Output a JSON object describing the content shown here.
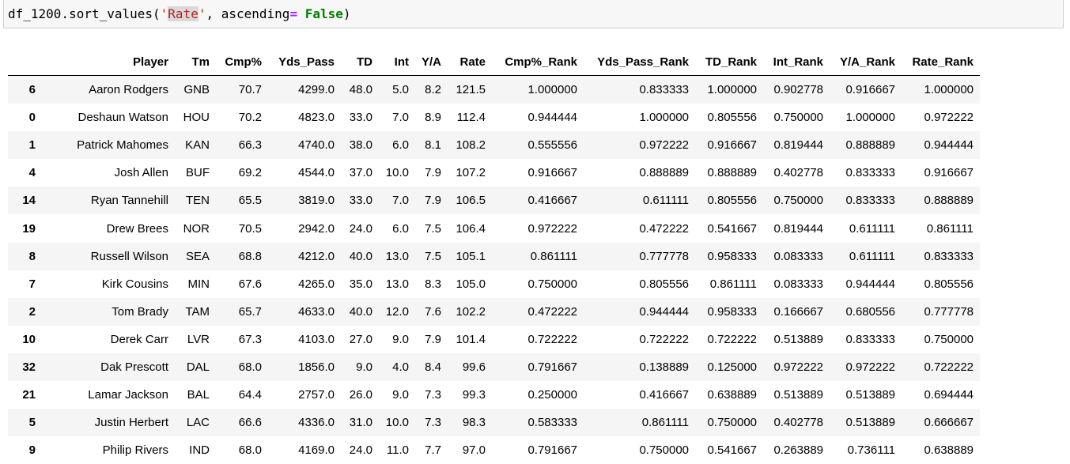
{
  "code_cell": {
    "prefix": "df_1200.sort_values(",
    "quote_open": "'",
    "arg_highlight": "Rate",
    "quote_close": "'",
    "middle": ", ascending",
    "op": "=",
    "space": " ",
    "kw": "False",
    "suffix": ")"
  },
  "dataframe": {
    "columns": [
      "",
      "Player",
      "Tm",
      "Cmp%",
      "Yds_Pass",
      "TD",
      "Int",
      "Y/A",
      "Rate",
      "Cmp%_Rank",
      "Yds_Pass_Rank",
      "TD_Rank",
      "Int_Rank",
      "Y/A_Rank",
      "Rate_Rank"
    ],
    "rows": [
      [
        "6",
        "Aaron Rodgers",
        "GNB",
        "70.7",
        "4299.0",
        "48.0",
        "5.0",
        "8.2",
        "121.5",
        "1.000000",
        "0.833333",
        "1.000000",
        "0.902778",
        "0.916667",
        "1.000000"
      ],
      [
        "0",
        "Deshaun Watson",
        "HOU",
        "70.2",
        "4823.0",
        "33.0",
        "7.0",
        "8.9",
        "112.4",
        "0.944444",
        "1.000000",
        "0.805556",
        "0.750000",
        "1.000000",
        "0.972222"
      ],
      [
        "1",
        "Patrick Mahomes",
        "KAN",
        "66.3",
        "4740.0",
        "38.0",
        "6.0",
        "8.1",
        "108.2",
        "0.555556",
        "0.972222",
        "0.916667",
        "0.819444",
        "0.888889",
        "0.944444"
      ],
      [
        "4",
        "Josh Allen",
        "BUF",
        "69.2",
        "4544.0",
        "37.0",
        "10.0",
        "7.9",
        "107.2",
        "0.916667",
        "0.888889",
        "0.888889",
        "0.402778",
        "0.833333",
        "0.916667"
      ],
      [
        "14",
        "Ryan Tannehill",
        "TEN",
        "65.5",
        "3819.0",
        "33.0",
        "7.0",
        "7.9",
        "106.5",
        "0.416667",
        "0.611111",
        "0.805556",
        "0.750000",
        "0.833333",
        "0.888889"
      ],
      [
        "19",
        "Drew Brees",
        "NOR",
        "70.5",
        "2942.0",
        "24.0",
        "6.0",
        "7.5",
        "106.4",
        "0.972222",
        "0.472222",
        "0.541667",
        "0.819444",
        "0.611111",
        "0.861111"
      ],
      [
        "8",
        "Russell Wilson",
        "SEA",
        "68.8",
        "4212.0",
        "40.0",
        "13.0",
        "7.5",
        "105.1",
        "0.861111",
        "0.777778",
        "0.958333",
        "0.083333",
        "0.611111",
        "0.833333"
      ],
      [
        "7",
        "Kirk Cousins",
        "MIN",
        "67.6",
        "4265.0",
        "35.0",
        "13.0",
        "8.3",
        "105.0",
        "0.750000",
        "0.805556",
        "0.861111",
        "0.083333",
        "0.944444",
        "0.805556"
      ],
      [
        "2",
        "Tom Brady",
        "TAM",
        "65.7",
        "4633.0",
        "40.0",
        "12.0",
        "7.6",
        "102.2",
        "0.472222",
        "0.944444",
        "0.958333",
        "0.166667",
        "0.680556",
        "0.777778"
      ],
      [
        "10",
        "Derek Carr",
        "LVR",
        "67.3",
        "4103.0",
        "27.0",
        "9.0",
        "7.9",
        "101.4",
        "0.722222",
        "0.722222",
        "0.722222",
        "0.513889",
        "0.833333",
        "0.750000"
      ],
      [
        "32",
        "Dak Prescott",
        "DAL",
        "68.0",
        "1856.0",
        "9.0",
        "4.0",
        "8.4",
        "99.6",
        "0.791667",
        "0.138889",
        "0.125000",
        "0.972222",
        "0.972222",
        "0.722222"
      ],
      [
        "21",
        "Lamar Jackson",
        "BAL",
        "64.4",
        "2757.0",
        "26.0",
        "9.0",
        "7.3",
        "99.3",
        "0.250000",
        "0.416667",
        "0.638889",
        "0.513889",
        "0.513889",
        "0.694444"
      ],
      [
        "5",
        "Justin Herbert",
        "LAC",
        "66.6",
        "4336.0",
        "31.0",
        "10.0",
        "7.3",
        "98.3",
        "0.583333",
        "0.861111",
        "0.750000",
        "0.402778",
        "0.513889",
        "0.666667"
      ],
      [
        "9",
        "Philip Rivers",
        "IND",
        "68.0",
        "4169.0",
        "24.0",
        "11.0",
        "7.7",
        "97.0",
        "0.791667",
        "0.750000",
        "0.541667",
        "0.263889",
        "0.736111",
        "0.638889"
      ]
    ]
  }
}
